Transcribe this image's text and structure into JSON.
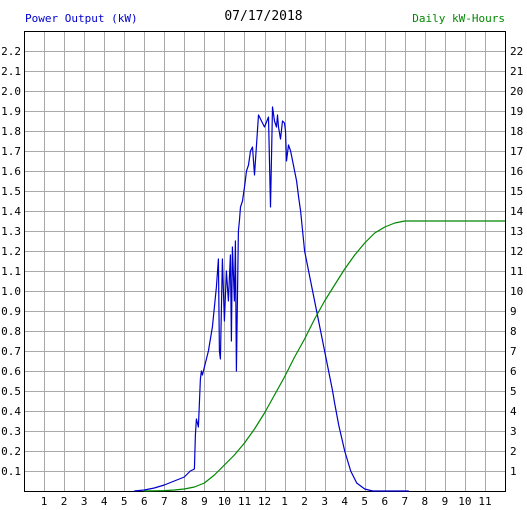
{
  "colors": {
    "power": "#0000cc",
    "energy": "#008800",
    "left_label": "#0000cc",
    "right_label": "#008800",
    "grid": "#a9a9a9"
  },
  "chart_data": {
    "type": "line",
    "title": "07/17/2018",
    "ylabel_left": "Power Output (kW)",
    "ylabel_right": "Daily kW-Hours",
    "x_tick_labels": [
      "1",
      "2",
      "3",
      "4",
      "5",
      "6",
      "7",
      "8",
      "9",
      "10",
      "11",
      "12",
      "1",
      "2",
      "3",
      "4",
      "5",
      "6",
      "7",
      "8",
      "9",
      "10",
      "11"
    ],
    "xlim": [
      0,
      24
    ],
    "ylim_left": [
      0,
      2.3
    ],
    "ylim_right": [
      0,
      23
    ],
    "yticks_left": [
      "0.1",
      "0.2",
      "0.3",
      "0.4",
      "0.5",
      "0.6",
      "0.7",
      "0.8",
      "0.9",
      "1.0",
      "1.1",
      "1.2",
      "1.3",
      "1.4",
      "1.5",
      "1.6",
      "1.7",
      "1.8",
      "1.9",
      "2.0",
      "2.1",
      "2.2"
    ],
    "yticks_right": [
      "1",
      "2",
      "3",
      "4",
      "5",
      "6",
      "7",
      "8",
      "9",
      "10",
      "11",
      "12",
      "13",
      "14",
      "15",
      "16",
      "17",
      "18",
      "19",
      "20",
      "21",
      "22"
    ],
    "grid": true,
    "series": [
      {
        "axis": "left",
        "x": [
          5.5,
          6.0,
          6.5,
          7.0,
          7.5,
          8.0,
          8.3,
          8.5,
          8.55,
          8.6,
          8.7,
          8.8,
          8.85,
          8.9,
          9.0,
          9.2,
          9.4,
          9.6,
          9.7,
          9.75,
          9.8,
          9.9,
          10.0,
          10.1,
          10.2,
          10.3,
          10.35,
          10.4,
          10.5,
          10.55,
          10.6,
          10.7,
          10.75,
          10.8,
          10.9,
          11.0,
          11.05,
          11.1,
          11.2,
          11.3,
          11.4,
          11.5,
          11.7,
          12.0,
          12.2,
          12.3,
          12.4,
          12.5,
          12.6,
          12.65,
          12.7,
          12.8,
          12.9,
          13.0,
          13.05,
          13.1,
          13.2,
          13.3,
          13.5,
          13.6,
          13.7,
          13.8,
          13.9,
          14.0,
          14.2,
          14.4,
          14.6,
          14.8,
          15.0,
          15.2,
          15.4,
          15.5,
          15.7,
          16.0,
          16.3,
          16.6,
          17.0,
          17.4,
          17.8,
          18.0,
          18.2,
          18.4,
          18.6,
          18.8,
          19.0,
          19.2
        ],
        "y": [
          0.0,
          0.005,
          0.015,
          0.03,
          0.05,
          0.07,
          0.1,
          0.11,
          0.28,
          0.36,
          0.32,
          0.56,
          0.6,
          0.58,
          0.62,
          0.7,
          0.82,
          1.02,
          1.16,
          0.7,
          0.66,
          1.16,
          0.85,
          1.1,
          0.95,
          1.18,
          0.75,
          1.22,
          0.95,
          1.25,
          0.6,
          1.3,
          1.35,
          1.42,
          1.45,
          1.52,
          1.56,
          1.6,
          1.63,
          1.7,
          1.72,
          1.58,
          1.88,
          1.82,
          1.87,
          1.42,
          1.92,
          1.85,
          1.82,
          1.88,
          1.82,
          1.76,
          1.85,
          1.84,
          1.8,
          1.65,
          1.73,
          1.7,
          1.6,
          1.55,
          1.47,
          1.4,
          1.3,
          1.2,
          1.1,
          1.0,
          0.9,
          0.8,
          0.7,
          0.6,
          0.5,
          0.44,
          0.33,
          0.2,
          0.1,
          0.04,
          0.01,
          0.0,
          0.0,
          0.0,
          0.0,
          0.0,
          0.0,
          0.0,
          0.0,
          0.0
        ]
      },
      {
        "axis": "right",
        "x": [
          6.0,
          6.5,
          7.0,
          7.5,
          8.0,
          8.5,
          9.0,
          9.5,
          10.0,
          10.5,
          11.0,
          11.5,
          12.0,
          12.5,
          13.0,
          13.5,
          14.0,
          14.5,
          15.0,
          15.5,
          16.0,
          16.5,
          17.0,
          17.5,
          18.0,
          18.5,
          19.0,
          19.5,
          20.0,
          21.0,
          22.0,
          23.0,
          24.0
        ],
        "y": [
          0.0,
          0.01,
          0.02,
          0.05,
          0.1,
          0.2,
          0.4,
          0.8,
          1.3,
          1.8,
          2.4,
          3.1,
          3.9,
          4.8,
          5.7,
          6.7,
          7.6,
          8.6,
          9.5,
          10.3,
          11.1,
          11.8,
          12.4,
          12.9,
          13.2,
          13.4,
          13.5,
          13.5,
          13.5,
          13.5,
          13.5,
          13.5,
          13.5
        ]
      }
    ]
  }
}
